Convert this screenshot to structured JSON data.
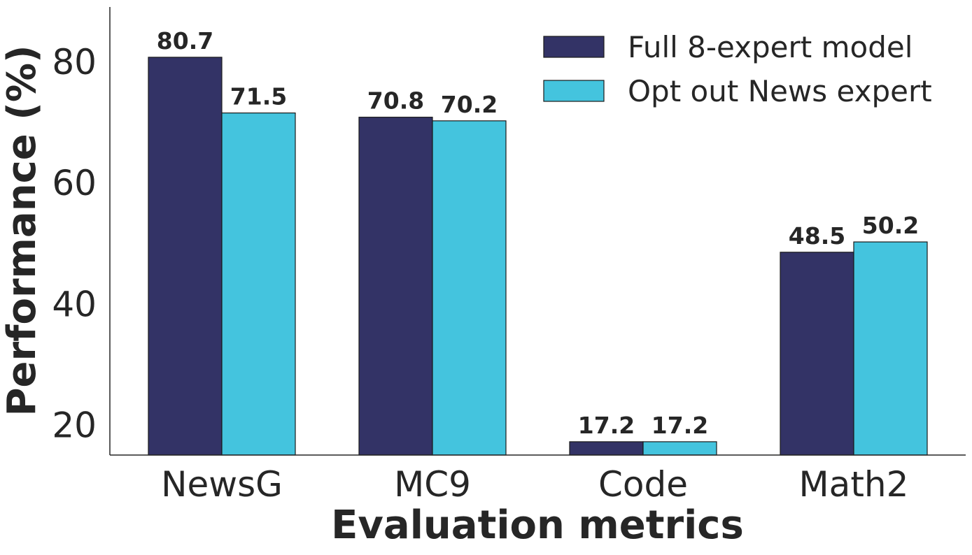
{
  "chart_data": {
    "type": "bar",
    "title": "",
    "xlabel": "Evaluation metrics",
    "ylabel": "Performance (%)",
    "categories": [
      "NewsG",
      "MC9",
      "Code",
      "Math2"
    ],
    "series": [
      {
        "name": "Full 8-expert model",
        "color": "#333366",
        "values": [
          80.7,
          70.8,
          17.2,
          48.5
        ],
        "labels": [
          "80.7",
          "70.8",
          "17.2",
          "48.5"
        ]
      },
      {
        "name": "Opt out News expert",
        "color": "#44c4de",
        "values": [
          71.5,
          70.2,
          17.2,
          50.2
        ],
        "labels": [
          "71.5",
          "70.2",
          "17.2",
          "50.2"
        ]
      }
    ],
    "yticks": [
      20,
      40,
      60,
      80
    ],
    "ytick_labels": [
      "20",
      "40",
      "60",
      "80"
    ],
    "ylim": [
      15,
      89
    ],
    "grid": false,
    "legend_position": "top-right"
  }
}
